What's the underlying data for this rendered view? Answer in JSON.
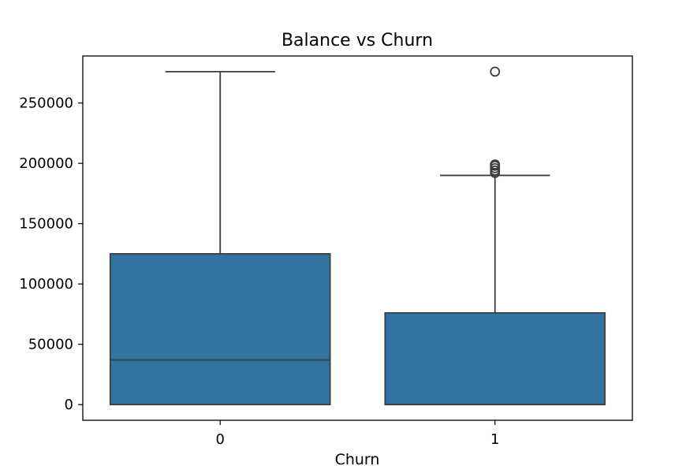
{
  "chart_data": {
    "type": "box",
    "title": "Balance vs Churn",
    "xlabel": "Churn",
    "ylabel": "",
    "ylim": [
      -13000,
      289000
    ],
    "yticks": [
      0,
      50000,
      100000,
      150000,
      200000,
      250000
    ],
    "ytick_labels": [
      "0",
      "50000",
      "100000",
      "150000",
      "200000",
      "250000"
    ],
    "categories": [
      "0",
      "1"
    ],
    "boxes": [
      {
        "category": "0",
        "whisker_low": 0,
        "q1": 0,
        "median": 37000,
        "q3": 125000,
        "whisker_high": 276000,
        "outliers": []
      },
      {
        "category": "1",
        "whisker_low": 0,
        "q1": 0,
        "median": 0,
        "q3": 76000,
        "whisker_high": 190000,
        "outliers": [
          192000,
          194000,
          196000,
          198000,
          199000,
          276000
        ]
      }
    ],
    "box_color": "#3274a1",
    "line_color": "#3d3d3d",
    "grid": false,
    "legend": "none"
  }
}
